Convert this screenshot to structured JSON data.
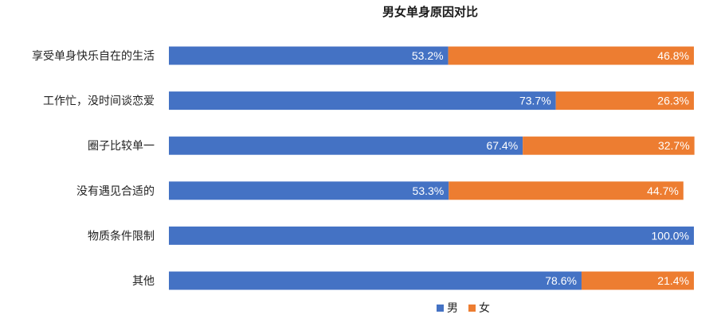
{
  "chart_data": {
    "type": "bar",
    "orientation": "horizontal",
    "stacked": true,
    "title": "男女单身原因对比",
    "xlabel": "",
    "ylabel": "",
    "xlim": [
      0,
      100
    ],
    "grid": false,
    "legend_position": "bottom",
    "categories": [
      "享受单身快乐自在的生活",
      "工作忙，没时间谈恋爱",
      "圈子比较单一",
      "没有遇见合适的",
      "物质条件限制",
      "其他"
    ],
    "series": [
      {
        "name": "男",
        "color": "#4472C4",
        "values": [
          53.2,
          73.7,
          67.4,
          53.3,
          100.0,
          78.6
        ],
        "labels": [
          "53.2%",
          "73.7%",
          "67.4%",
          "53.3%",
          "100.0%",
          "78.6%"
        ]
      },
      {
        "name": "女",
        "color": "#ED7D31",
        "values": [
          46.8,
          26.3,
          32.7,
          44.7,
          0,
          21.4
        ],
        "labels": [
          "46.8%",
          "26.3%",
          "32.7%",
          "44.7%",
          "",
          "21.4%"
        ]
      }
    ]
  }
}
